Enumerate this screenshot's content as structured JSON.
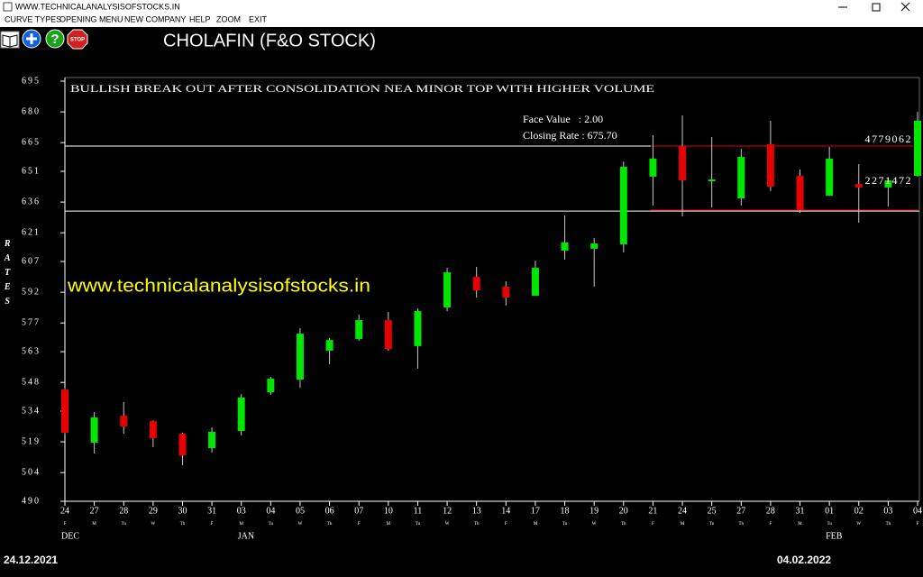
{
  "window": {
    "title": "WWW.TECHNICALANALYSISOFSTOCKS.IN"
  },
  "menu": [
    "CURVE TYPES",
    "OPENING MENU",
    "NEW COMPANY",
    "HELP",
    "ZOOM",
    "EXIT"
  ],
  "toolbar": {
    "help": "?",
    "stop": "STOP"
  },
  "chart_data": {
    "type": "candlestick",
    "title": "CHOLAFIN (F&O STOCK)",
    "ylabel": "RATES",
    "annotation": "BULLISH BREAK OUT AFTER CONSOLIDATION NEA MINOR TOP WITH HIGHER VOLUME",
    "info": [
      "Face Value   : 2.00",
      "Closing Rate : 675.70"
    ],
    "watermark": "www.technicalanalysisofstocks.in",
    "categories": [
      "24",
      "27",
      "28",
      "29",
      "30",
      "31",
      "03",
      "04",
      "05",
      "06",
      "07",
      "10",
      "11",
      "12",
      "13",
      "14",
      "17",
      "18",
      "19",
      "20",
      "21",
      "24",
      "25",
      "27",
      "28",
      "31",
      "01",
      "02",
      "03",
      "04"
    ],
    "weekdays": [
      "F",
      "M",
      "Tu",
      "W",
      "Th",
      "F",
      "M",
      "Tu",
      "W",
      "Th",
      "F",
      "M",
      "Tu",
      "W",
      "Th",
      "F",
      "M",
      "Tu",
      "W",
      "Th",
      "F",
      "M",
      "Tu",
      "Th",
      "F",
      "M",
      "Tu",
      "W",
      "Th",
      "F"
    ],
    "month_labels": [
      "DEC",
      null,
      null,
      null,
      null,
      null,
      "JAN",
      null,
      null,
      null,
      null,
      null,
      null,
      null,
      null,
      null,
      null,
      null,
      null,
      null,
      null,
      null,
      null,
      null,
      null,
      null,
      "FEB",
      null,
      null,
      null
    ],
    "open": [
      544.5,
      518.6,
      531.8,
      529.1,
      523.0,
      515.9,
      524.3,
      543.2,
      549.4,
      563.5,
      569.2,
      578.4,
      565.7,
      584.6,
      599.5,
      594.7,
      590.3,
      612.3,
      613.2,
      615.4,
      648.4,
      663.3,
      646.6,
      637.8,
      664.2,
      648.8,
      639.1,
      644.8,
      643.1,
      648.8
    ],
    "high": [
      545.5,
      533.5,
      538.4,
      529.5,
      523.5,
      526.1,
      542.3,
      550.7,
      574.5,
      569.6,
      581.1,
      582.4,
      584.1,
      603.9,
      604.4,
      597.3,
      607.4,
      629.4,
      618.4,
      655.8,
      668.6,
      678.3,
      667.7,
      662.0,
      675.6,
      651.9,
      662.9,
      654.5,
      647.9,
      680.0
    ],
    "low": [
      522.5,
      513.3,
      523.0,
      516.4,
      507.6,
      513.7,
      522.1,
      541.9,
      545.4,
      556.9,
      568.3,
      563.5,
      554.7,
      582.8,
      589.4,
      585.5,
      590.3,
      607.9,
      594.7,
      611.4,
      634.3,
      629.0,
      633.4,
      634.3,
      641.3,
      630.8,
      639.1,
      625.9,
      633.8,
      648.4
    ],
    "close": [
      523.4,
      530.9,
      526.5,
      520.8,
      512.4,
      523.9,
      540.6,
      549.8,
      571.8,
      568.7,
      578.4,
      564.3,
      582.8,
      601.7,
      592.9,
      589.4,
      603.9,
      616.3,
      615.8,
      653.2,
      657.2,
      646.6,
      647.0,
      658.0,
      643.5,
      632.1,
      657.2,
      643.1,
      646.6,
      675.7
    ],
    "up_color": "#00e600",
    "down_color": "#e60000",
    "ylim": [
      490,
      695
    ],
    "yticks": [
      695,
      680,
      665,
      651,
      636,
      621,
      607,
      592,
      577,
      563,
      548,
      534,
      519,
      504,
      490
    ],
    "levels": [
      {
        "value": 663.3,
        "color": "#ffffff"
      },
      {
        "value": 631.6,
        "color": "#ffffff"
      }
    ],
    "zone": {
      "top": 663.3,
      "bottom": 632.1,
      "color": "#e60000"
    },
    "volume_labels": [
      4779062,
      2271472
    ],
    "start_date": "24.12.2021",
    "end_date": "04.02.2022"
  }
}
